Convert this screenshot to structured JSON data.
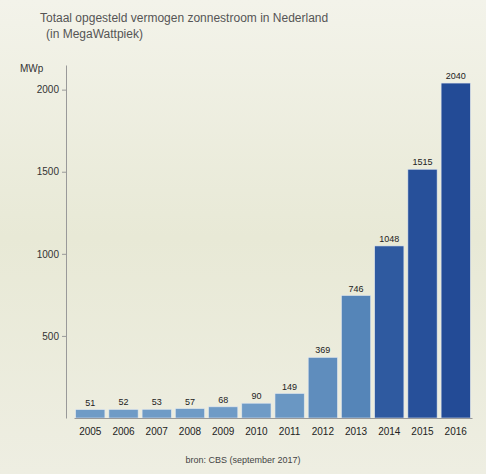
{
  "chart_data": {
    "type": "bar",
    "title": "Totaal opgesteld vermogen zonnestroom in Nederland",
    "subtitle": "(in MegaWattpiek)",
    "y_label": "MWp",
    "source": "bron: CBS (september 2017)",
    "categories": [
      "2005",
      "2006",
      "2007",
      "2008",
      "2009",
      "2010",
      "2011",
      "2012",
      "2013",
      "2014",
      "2015",
      "2016"
    ],
    "values": [
      51,
      52,
      53,
      57,
      68,
      90,
      149,
      369,
      746,
      1048,
      1515,
      2040
    ],
    "colors": [
      "#6f9bc6",
      "#6f9bc6",
      "#6f9bc6",
      "#6f9bc6",
      "#6f9bc6",
      "#6f9bc6",
      "#6a97c3",
      "#5f8dbd",
      "#5585b8",
      "#2f5aa0",
      "#27509a",
      "#234b96"
    ],
    "ylim": [
      0,
      2150
    ],
    "yticks": [
      500,
      1000,
      1500,
      2000
    ],
    "data_labels": true,
    "grid": false
  }
}
